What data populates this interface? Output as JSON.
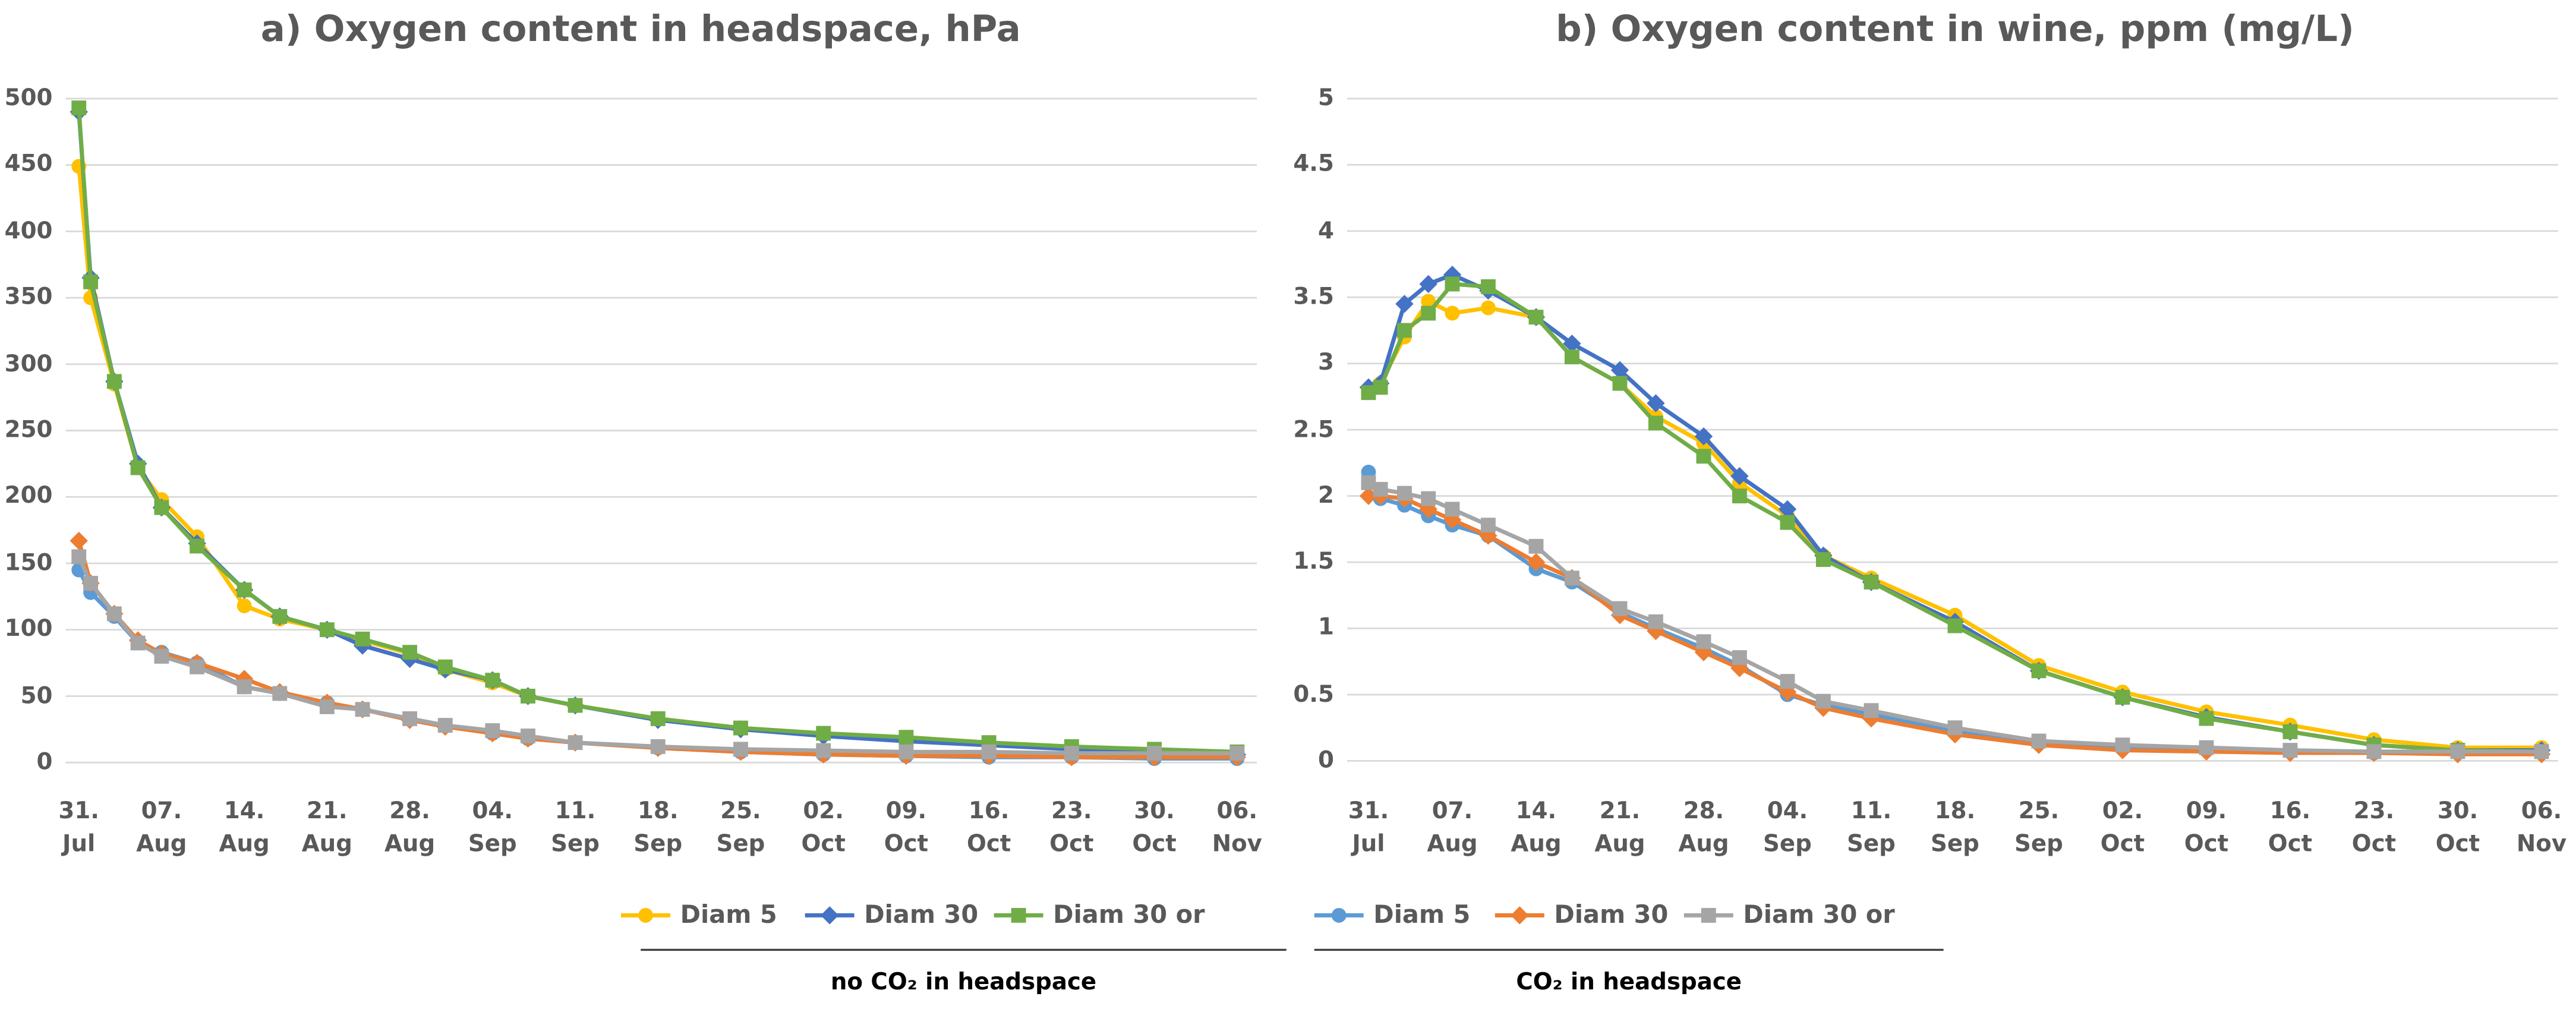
{
  "chart_data": [
    {
      "type": "line",
      "title": "a) Oxygen content in headspace, hPa",
      "x": [
        0,
        1,
        3,
        5,
        7,
        10,
        14,
        17,
        21,
        24,
        28,
        31,
        35,
        38,
        42,
        49,
        56,
        63,
        70,
        77,
        84,
        91,
        98
      ],
      "xlim": [
        0,
        98
      ],
      "xticks": [
        {
          "value": 0,
          "label": "31. Jul"
        },
        {
          "value": 7,
          "label": "07. Aug"
        },
        {
          "value": 14,
          "label": "14. Aug"
        },
        {
          "value": 21,
          "label": "21. Aug"
        },
        {
          "value": 28,
          "label": "28. Aug"
        },
        {
          "value": 35,
          "label": "04. Sep"
        },
        {
          "value": 42,
          "label": "11. Sep"
        },
        {
          "value": 49,
          "label": "18. Sep"
        },
        {
          "value": 56,
          "label": "25. Sep"
        },
        {
          "value": 63,
          "label": "02. Oct"
        },
        {
          "value": 70,
          "label": "09. Oct"
        },
        {
          "value": 77,
          "label": "16. Oct"
        },
        {
          "value": 84,
          "label": "23. Oct"
        },
        {
          "value": 91,
          "label": "30. Oct"
        },
        {
          "value": 98,
          "label": "06. Nov"
        }
      ],
      "ylim": [
        0,
        500
      ],
      "yticks": [
        0,
        50,
        100,
        150,
        200,
        250,
        300,
        350,
        400,
        450,
        500
      ],
      "grid": true,
      "series": [
        {
          "name": "Diam 5",
          "color": "#ffc000",
          "marker": "circle",
          "values": [
            449,
            350,
            285,
            222,
            198,
            170,
            118,
            108,
            100,
            92,
            82,
            70,
            60,
            50,
            43,
            33,
            26,
            22,
            19,
            15,
            12,
            9,
            8
          ]
        },
        {
          "name": "Diam 30",
          "color": "#4472c4",
          "marker": "diamond",
          "values": [
            490,
            365,
            287,
            225,
            192,
            165,
            130,
            110,
            100,
            88,
            78,
            70,
            62,
            50,
            43,
            32,
            25,
            20,
            16,
            13,
            10,
            8,
            6
          ]
        },
        {
          "name": "Diam 30 or",
          "color": "#70ad47",
          "marker": "square",
          "values": [
            493,
            362,
            287,
            222,
            192,
            163,
            130,
            110,
            100,
            93,
            83,
            72,
            62,
            50,
            43,
            33,
            26,
            22,
            19,
            15,
            12,
            10,
            8
          ]
        },
        {
          "name": "Diam 5",
          "color": "#5b9bd5",
          "marker": "circle",
          "values": [
            145,
            128,
            110,
            90,
            83,
            75,
            57,
            52,
            45,
            40,
            33,
            28,
            22,
            18,
            15,
            11,
            8,
            6,
            5,
            4,
            4,
            3,
            3
          ]
        },
        {
          "name": "Diam 30",
          "color": "#ed7d31",
          "marker": "diamond",
          "values": [
            167,
            135,
            112,
            92,
            82,
            75,
            63,
            53,
            45,
            40,
            32,
            27,
            22,
            18,
            15,
            11,
            8,
            6,
            5,
            5,
            4,
            4,
            4
          ]
        },
        {
          "name": "Diam 30 or",
          "color": "#a5a5a5",
          "marker": "square",
          "values": [
            155,
            135,
            112,
            90,
            80,
            72,
            57,
            52,
            42,
            40,
            33,
            28,
            24,
            20,
            15,
            12,
            10,
            9,
            8,
            8,
            7,
            7,
            7
          ]
        }
      ]
    },
    {
      "type": "line",
      "title": "b) Oxygen content in wine, ppm (mg/L)",
      "x": [
        0,
        1,
        3,
        5,
        7,
        10,
        14,
        17,
        21,
        24,
        28,
        31,
        35,
        38,
        42,
        49,
        56,
        63,
        70,
        77,
        84,
        91,
        98
      ],
      "xlim": [
        0,
        98
      ],
      "xticks": [
        {
          "value": 0,
          "label": "31. Jul"
        },
        {
          "value": 7,
          "label": "07. Aug"
        },
        {
          "value": 14,
          "label": "14. Aug"
        },
        {
          "value": 21,
          "label": "21. Aug"
        },
        {
          "value": 28,
          "label": "28. Aug"
        },
        {
          "value": 35,
          "label": "04. Sep"
        },
        {
          "value": 42,
          "label": "11. Sep"
        },
        {
          "value": 49,
          "label": "18. Sep"
        },
        {
          "value": 56,
          "label": "25. Sep"
        },
        {
          "value": 63,
          "label": "02. Oct"
        },
        {
          "value": 70,
          "label": "09. Oct"
        },
        {
          "value": 77,
          "label": "16. Oct"
        },
        {
          "value": 84,
          "label": "23. Oct"
        },
        {
          "value": 91,
          "label": "30. Oct"
        },
        {
          "value": 98,
          "label": "06. Nov"
        }
      ],
      "ylim": [
        0,
        5
      ],
      "yticks": [
        0,
        0.5,
        1,
        1.5,
        2,
        2.5,
        3,
        3.5,
        4,
        4.5,
        5
      ],
      "grid": true,
      "series": [
        {
          "color": "#ffc000",
          "marker": "circle",
          "values": [
            2.8,
            2.85,
            3.2,
            3.47,
            3.38,
            3.42,
            3.35,
            3.05,
            2.85,
            2.6,
            2.4,
            2.1,
            1.85,
            1.55,
            1.38,
            1.1,
            0.72,
            0.52,
            0.37,
            0.27,
            0.16,
            0.1,
            0.1
          ]
        },
        {
          "color": "#4472c4",
          "marker": "diamond",
          "values": [
            2.82,
            2.85,
            3.45,
            3.6,
            3.67,
            3.55,
            3.35,
            3.15,
            2.95,
            2.7,
            2.45,
            2.15,
            1.9,
            1.55,
            1.35,
            1.05,
            0.68,
            0.48,
            0.33,
            0.22,
            0.12,
            0.08,
            0.08
          ]
        },
        {
          "color": "#70ad47",
          "marker": "square",
          "values": [
            2.78,
            2.82,
            3.25,
            3.38,
            3.6,
            3.58,
            3.35,
            3.05,
            2.85,
            2.55,
            2.3,
            2.0,
            1.8,
            1.52,
            1.35,
            1.02,
            0.68,
            0.48,
            0.32,
            0.22,
            0.12,
            0.08,
            0.07
          ]
        },
        {
          "color": "#5b9bd5",
          "marker": "circle",
          "values": [
            2.18,
            1.98,
            1.93,
            1.85,
            1.78,
            1.7,
            1.45,
            1.35,
            1.12,
            1.0,
            0.85,
            0.72,
            0.5,
            0.42,
            0.35,
            0.22,
            0.15,
            0.1,
            0.08,
            0.07,
            0.06,
            0.06,
            0.06
          ]
        },
        {
          "color": "#ed7d31",
          "marker": "diamond",
          "values": [
            2.0,
            2.0,
            1.98,
            1.9,
            1.82,
            1.7,
            1.5,
            1.38,
            1.1,
            0.98,
            0.82,
            0.7,
            0.52,
            0.4,
            0.32,
            0.2,
            0.12,
            0.08,
            0.07,
            0.06,
            0.06,
            0.05,
            0.05
          ]
        },
        {
          "color": "#a5a5a5",
          "marker": "square",
          "values": [
            2.1,
            2.05,
            2.02,
            1.98,
            1.9,
            1.78,
            1.62,
            1.38,
            1.15,
            1.05,
            0.9,
            0.78,
            0.6,
            0.45,
            0.38,
            0.25,
            0.15,
            0.12,
            0.1,
            0.08,
            0.07,
            0.07,
            0.07
          ]
        }
      ]
    }
  ],
  "legend_groups": [
    "no CO₂ in headspace",
    "CO₂ in headspace"
  ]
}
